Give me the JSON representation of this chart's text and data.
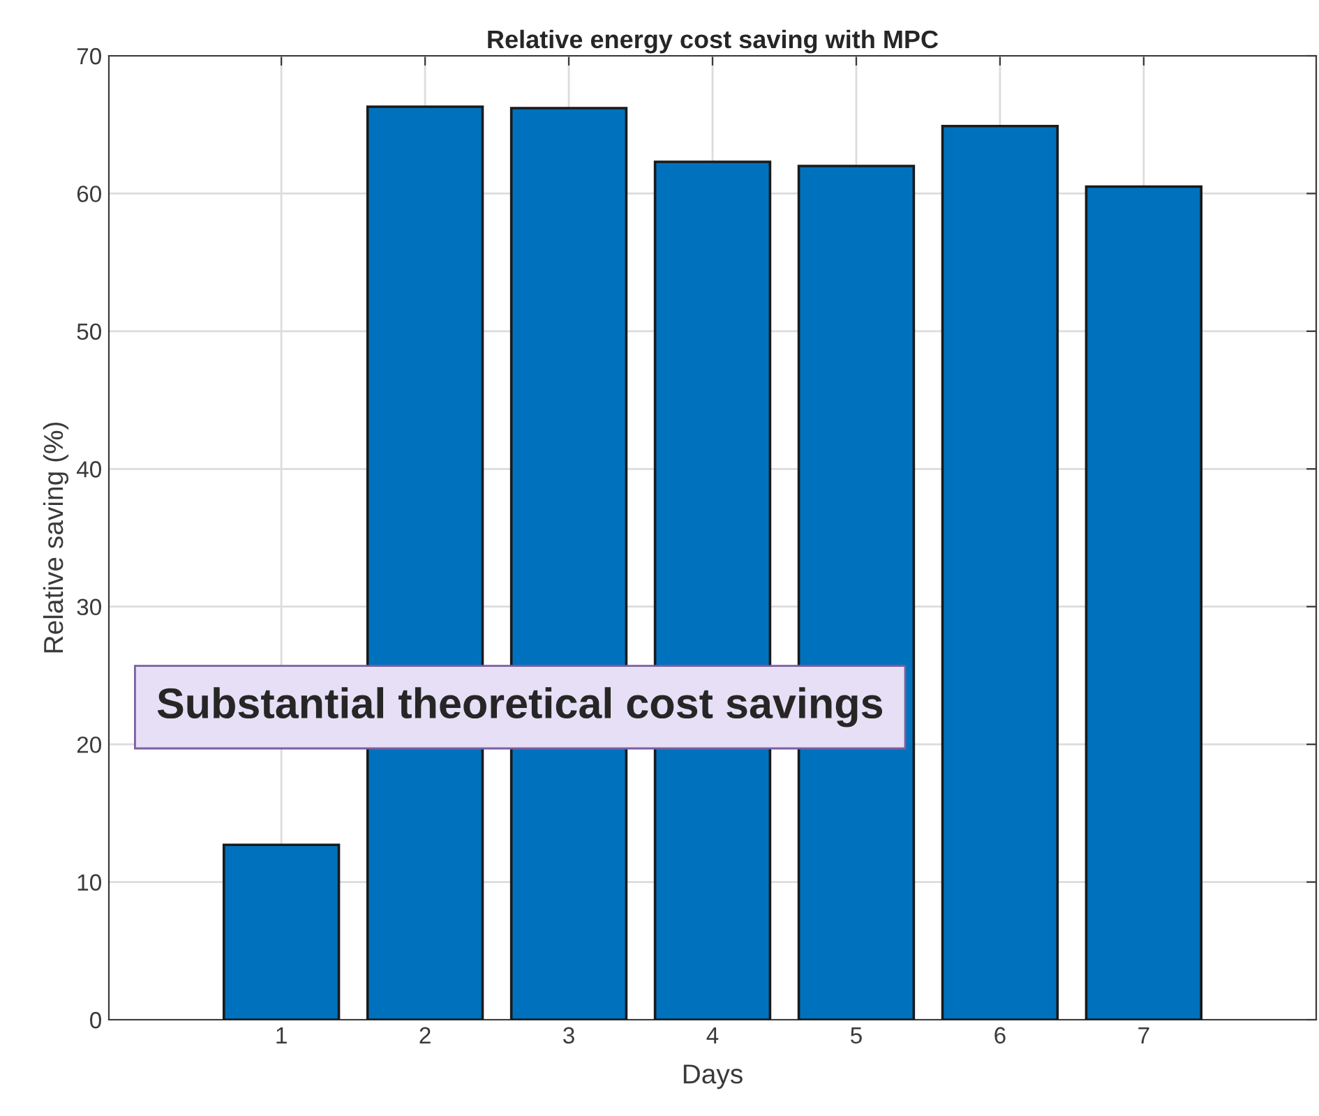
{
  "chart_data": {
    "type": "bar",
    "title": "Relative energy cost saving with MPC",
    "xlabel": "Days",
    "ylabel": "Relative saving (%)",
    "categories": [
      "1",
      "2",
      "3",
      "4",
      "5",
      "6",
      "7"
    ],
    "values": [
      12.7,
      66.3,
      66.2,
      62.3,
      62.0,
      64.9,
      60.5
    ],
    "color": "#0072bd",
    "ylim": [
      0,
      70
    ],
    "yticks": [
      0,
      10,
      20,
      30,
      40,
      50,
      60,
      70
    ],
    "grid": true,
    "annotations": [
      "Substantial theoretical cost savings"
    ]
  }
}
